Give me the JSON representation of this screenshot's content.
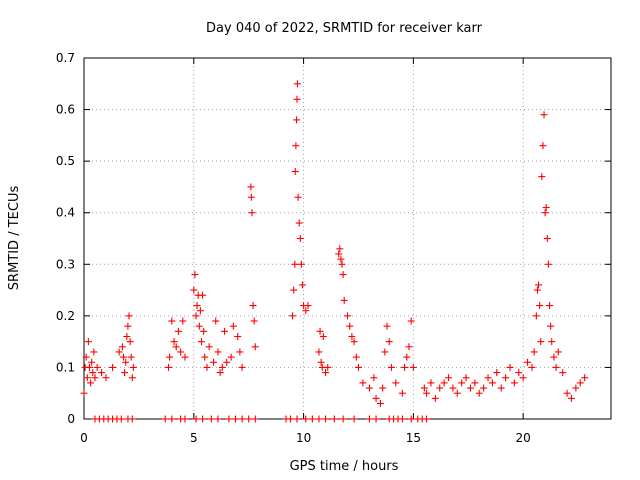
{
  "chart_data": {
    "type": "scatter",
    "title": "Day 040 of 2022, SRMTID for receiver karr",
    "xlabel": "GPS time / hours",
    "ylabel": "SRMTID / TECUs",
    "xlim": [
      0,
      24
    ],
    "ylim": [
      0,
      0.7
    ],
    "xticks": [
      0,
      5,
      10,
      15,
      20
    ],
    "yticks": [
      0,
      0.1,
      0.2,
      0.3,
      0.4,
      0.5,
      0.6,
      0.7
    ],
    "ytick_labels": [
      "0",
      "0.1",
      "0.2",
      "0.3",
      "0.4",
      "0.5",
      "0.6",
      "0.7"
    ],
    "grid": true,
    "marker": "+",
    "color": "#ff0000",
    "series": [
      {
        "name": "SRMTID",
        "x": [
          0.0,
          0.05,
          0.1,
          0.15,
          0.2,
          0.25,
          0.3,
          0.35,
          0.4,
          0.45,
          0.5,
          0.6,
          0.8,
          1.0,
          1.3,
          1.6,
          1.75,
          1.8,
          1.85,
          1.9,
          1.95,
          2.0,
          2.05,
          2.1,
          2.15,
          2.2,
          2.25,
          3.85,
          3.9,
          4.0,
          4.1,
          4.2,
          4.3,
          4.4,
          4.5,
          4.6,
          5.0,
          5.05,
          5.1,
          5.15,
          5.2,
          5.25,
          5.3,
          5.35,
          5.4,
          5.45,
          5.5,
          5.6,
          5.7,
          5.9,
          6.0,
          6.1,
          6.2,
          6.3,
          6.4,
          6.5,
          6.7,
          6.8,
          7.0,
          7.1,
          7.2,
          7.6,
          7.62,
          7.65,
          7.7,
          7.75,
          7.8,
          9.5,
          9.55,
          9.6,
          9.62,
          9.65,
          9.68,
          9.7,
          9.72,
          9.75,
          9.8,
          9.85,
          9.9,
          9.95,
          10.0,
          10.1,
          10.2,
          10.7,
          10.75,
          10.8,
          10.85,
          10.9,
          11.0,
          11.1,
          11.6,
          11.65,
          11.7,
          11.75,
          11.8,
          11.85,
          12.0,
          12.1,
          12.2,
          12.3,
          12.4,
          12.5,
          12.7,
          13.0,
          13.2,
          13.3,
          13.5,
          13.6,
          13.7,
          13.8,
          13.9,
          14.0,
          14.2,
          14.5,
          14.6,
          14.7,
          14.8,
          14.9,
          15.0,
          15.5,
          15.6,
          15.8,
          16.0,
          16.2,
          16.4,
          16.6,
          16.8,
          17.0,
          17.2,
          17.4,
          17.6,
          17.8,
          18.0,
          18.2,
          18.4,
          18.6,
          18.8,
          19.0,
          19.2,
          19.4,
          19.6,
          19.8,
          20.0,
          20.2,
          20.4,
          20.5,
          20.6,
          20.65,
          20.7,
          20.75,
          20.8,
          20.85,
          20.9,
          20.95,
          21.0,
          21.05,
          21.1,
          21.15,
          21.2,
          21.25,
          21.3,
          21.4,
          21.5,
          21.6,
          21.8,
          22.0,
          22.2,
          22.4,
          22.6,
          22.8,
          0.5,
          0.7,
          0.9,
          1.1,
          1.3,
          1.5,
          1.7,
          2.0,
          2.2,
          3.7,
          4.0,
          4.4,
          4.6,
          5.1,
          5.4,
          5.8,
          6.1,
          6.6,
          6.9,
          7.2,
          7.5,
          7.8,
          9.2,
          9.4,
          9.7,
          10.1,
          10.4,
          10.7,
          11.0,
          11.4,
          11.8,
          12.3,
          13.0,
          13.3,
          13.9,
          14.1,
          14.3,
          14.5,
          14.9,
          15.2,
          15.4,
          15.6
        ],
        "y": [
          0.05,
          0.1,
          0.12,
          0.08,
          0.15,
          0.1,
          0.07,
          0.11,
          0.09,
          0.13,
          0.08,
          0.1,
          0.09,
          0.08,
          0.1,
          0.13,
          0.14,
          0.12,
          0.09,
          0.11,
          0.16,
          0.18,
          0.2,
          0.15,
          0.12,
          0.08,
          0.1,
          0.1,
          0.12,
          0.19,
          0.15,
          0.14,
          0.17,
          0.13,
          0.19,
          0.12,
          0.25,
          0.28,
          0.2,
          0.22,
          0.24,
          0.18,
          0.21,
          0.15,
          0.24,
          0.17,
          0.12,
          0.1,
          0.14,
          0.11,
          0.19,
          0.13,
          0.09,
          0.1,
          0.17,
          0.11,
          0.12,
          0.18,
          0.16,
          0.13,
          0.1,
          0.45,
          0.43,
          0.4,
          0.22,
          0.19,
          0.14,
          0.2,
          0.25,
          0.3,
          0.48,
          0.53,
          0.58,
          0.62,
          0.65,
          0.43,
          0.38,
          0.35,
          0.3,
          0.26,
          0.22,
          0.21,
          0.22,
          0.13,
          0.17,
          0.11,
          0.1,
          0.16,
          0.09,
          0.1,
          0.32,
          0.33,
          0.31,
          0.3,
          0.28,
          0.23,
          0.2,
          0.18,
          0.16,
          0.15,
          0.12,
          0.1,
          0.07,
          0.06,
          0.08,
          0.04,
          0.03,
          0.06,
          0.13,
          0.18,
          0.15,
          0.1,
          0.07,
          0.05,
          0.1,
          0.12,
          0.14,
          0.19,
          0.1,
          0.06,
          0.05,
          0.07,
          0.04,
          0.06,
          0.07,
          0.08,
          0.06,
          0.05,
          0.07,
          0.08,
          0.06,
          0.07,
          0.05,
          0.06,
          0.08,
          0.07,
          0.09,
          0.06,
          0.08,
          0.1,
          0.07,
          0.09,
          0.08,
          0.11,
          0.1,
          0.13,
          0.2,
          0.25,
          0.26,
          0.22,
          0.15,
          0.47,
          0.53,
          0.59,
          0.4,
          0.41,
          0.35,
          0.3,
          0.22,
          0.18,
          0.15,
          0.12,
          0.1,
          0.13,
          0.09,
          0.05,
          0.04,
          0.06,
          0.07,
          0.08,
          0.0,
          0.0,
          0.0,
          0.0,
          0.0,
          0.0,
          0.0,
          0.0,
          0.0,
          0.0,
          0.0,
          0.0,
          0.0,
          0.0,
          0.0,
          0.0,
          0.0,
          0.0,
          0.0,
          0.0,
          0.0,
          0.0,
          0.0,
          0.0,
          0.0,
          0.0,
          0.0,
          0.0,
          0.0,
          0.0,
          0.0,
          0.0,
          0.0,
          0.0,
          0.0,
          0.0,
          0.0,
          0.0,
          0.0,
          0.0,
          0.0,
          0.0
        ]
      }
    ]
  }
}
